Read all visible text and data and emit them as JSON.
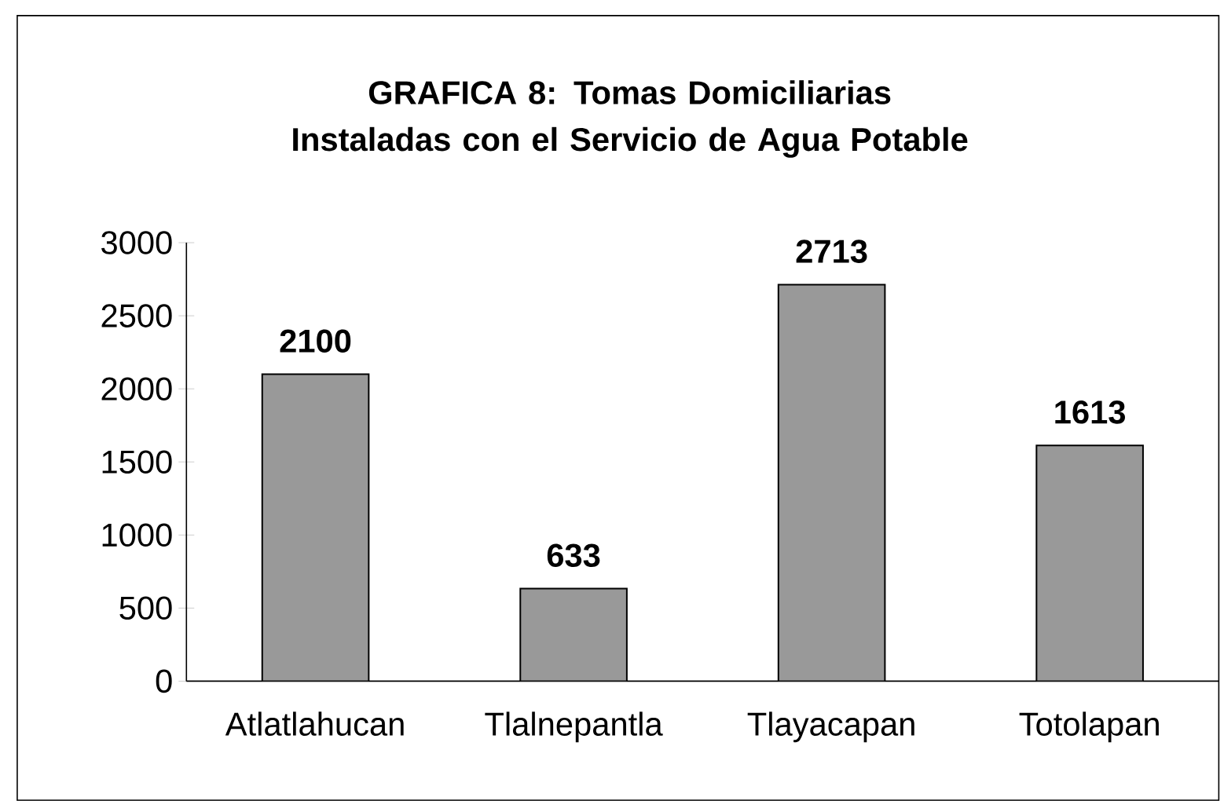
{
  "chart_data": {
    "type": "bar",
    "title": "GRAFICA 8: Tomas Domiciliarias Instaladas con el Servicio de Agua Potable",
    "categories": [
      "Atlatlahucan",
      "Tlalnepantla",
      "Tlayacapan",
      "Totolapan"
    ],
    "values": [
      2100,
      633,
      2713,
      1613
    ],
    "color": "#999999",
    "ylim": [
      0,
      3000
    ],
    "yticks": [
      0,
      500,
      1000,
      1500,
      2000,
      2500,
      3000
    ],
    "data_labels": true
  }
}
